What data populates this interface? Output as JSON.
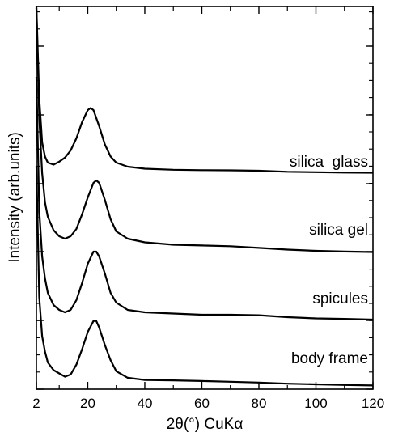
{
  "chart_data": {
    "type": "line",
    "xlabel": "2θ(°) CuKα",
    "ylabel": "Intensity (arb.units)",
    "xlim": [
      2,
      120
    ],
    "x_ticks": [
      2,
      20,
      40,
      60,
      80,
      100,
      120
    ],
    "x_tick_labels": [
      "2",
      "20",
      "40",
      "60",
      "80",
      "100",
      "120"
    ],
    "y_scale": "arbitrary (stacked, offset traces)",
    "y_ticks_labeled": false,
    "grid": false,
    "legend": "none (traces labeled directly)",
    "series": [
      {
        "name": "silica  glass",
        "color": "#000000",
        "x": [
          2,
          3,
          4,
          5,
          6,
          8,
          10,
          12,
          14,
          16,
          18,
          20,
          21,
          22,
          24,
          26,
          28,
          30,
          34,
          40,
          50,
          60,
          70,
          80,
          90,
          100,
          110,
          120
        ],
        "y": [
          100,
          40,
          18,
          11,
          8,
          7,
          8.5,
          10.5,
          14,
          20,
          28,
          34,
          35,
          34,
          26,
          17,
          11,
          8,
          6,
          5,
          4.5,
          4.3,
          4.2,
          4,
          3.5,
          3.3,
          3.1,
          3
        ]
      },
      {
        "name": "silica gel",
        "color": "#000000",
        "x": [
          2,
          3,
          4,
          5,
          6,
          8,
          10,
          12,
          14,
          16,
          18,
          20,
          22,
          23,
          24,
          26,
          28,
          30,
          34,
          40,
          50,
          60,
          70,
          80,
          90,
          100,
          110,
          120
        ],
        "y": [
          100,
          55,
          32,
          20,
          14,
          8.5,
          6,
          5,
          6,
          9,
          15,
          22,
          28,
          29,
          28,
          21,
          13,
          8,
          5,
          3.5,
          2.5,
          2.2,
          1.9,
          1.2,
          0.5,
          0,
          -0.3,
          -0.5
        ]
      },
      {
        "name": "spicules",
        "color": "#000000",
        "x": [
          2,
          3,
          4,
          5,
          6,
          8,
          10,
          12,
          14,
          16,
          18,
          20,
          22,
          23,
          24,
          26,
          28,
          30,
          34,
          40,
          50,
          60,
          70,
          80,
          90,
          100,
          110,
          120
        ],
        "y": [
          100,
          45,
          26,
          17,
          11,
          6,
          4,
          3,
          4,
          8,
          15,
          23,
          28,
          28,
          26,
          19,
          11,
          7,
          4,
          3,
          2.5,
          2,
          2,
          1.8,
          1,
          0.5,
          0.3,
          0
        ]
      },
      {
        "name": "body frame",
        "color": "#000000",
        "x": [
          2,
          3,
          4,
          5,
          6,
          8,
          10,
          12,
          14,
          16,
          18,
          20,
          22,
          23,
          24,
          26,
          28,
          30,
          34,
          40,
          50,
          60,
          70,
          80,
          90,
          100,
          110,
          120
        ],
        "y": [
          100,
          40,
          22,
          15,
          10,
          6.5,
          5,
          3.5,
          4.5,
          9,
          16,
          24,
          29,
          29,
          26,
          18,
          11,
          6,
          3,
          2,
          1.8,
          1.5,
          1.2,
          0.8,
          0.3,
          0,
          -0.3,
          -0.5
        ]
      }
    ]
  }
}
